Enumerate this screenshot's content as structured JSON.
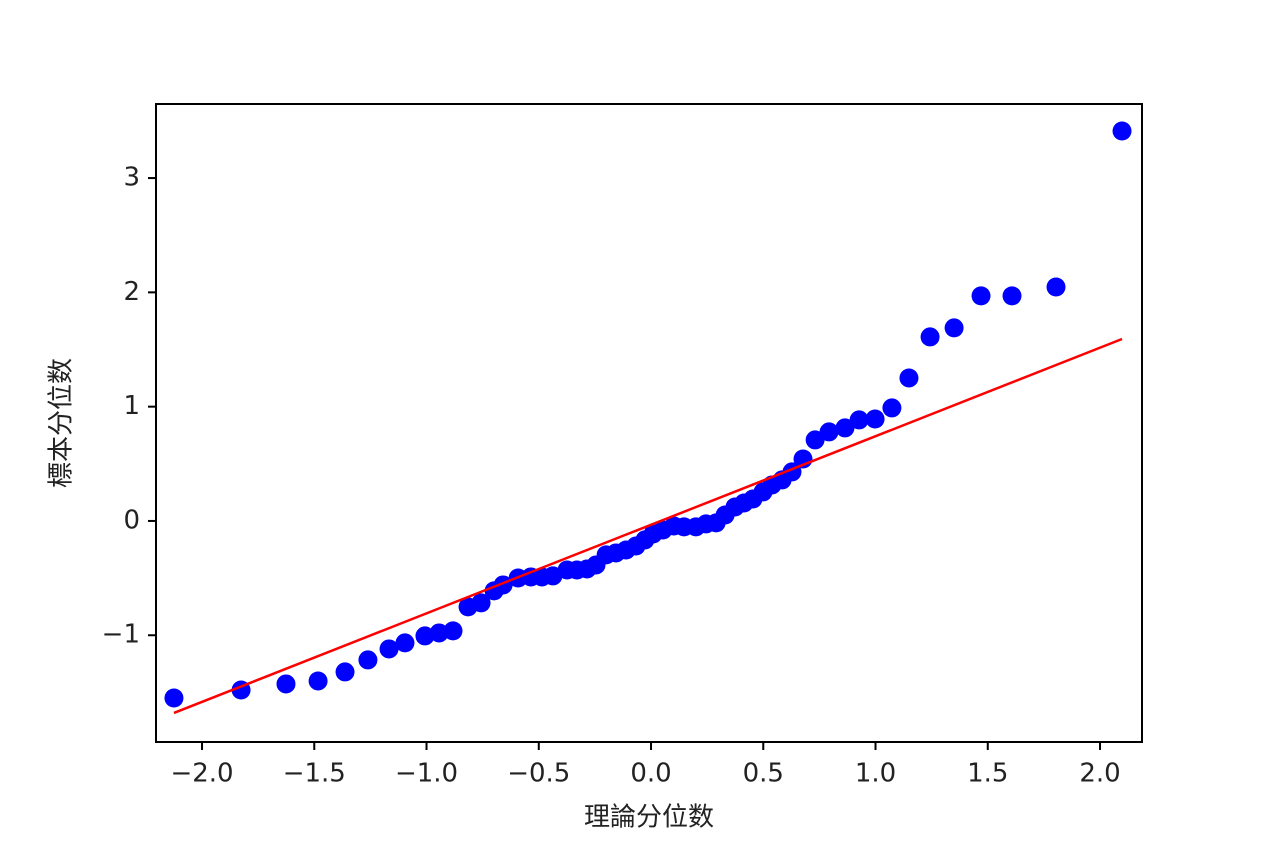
{
  "chart_data": {
    "type": "scatter",
    "xlabel": "理論分位数",
    "ylabel": "標本分位数",
    "xlim": [
      -2.205,
      2.187
    ],
    "ylim": [
      -1.934,
      3.648
    ],
    "xticks": [
      {
        "value": -2.0,
        "label": "−2.0"
      },
      {
        "value": -1.5,
        "label": "−1.5"
      },
      {
        "value": -1.0,
        "label": "−1.0"
      },
      {
        "value": -0.5,
        "label": "−0.5"
      },
      {
        "value": 0.0,
        "label": "0.0"
      },
      {
        "value": 0.5,
        "label": "0.5"
      },
      {
        "value": 1.0,
        "label": "1.0"
      },
      {
        "value": 1.5,
        "label": "1.5"
      },
      {
        "value": 2.0,
        "label": "2.0"
      }
    ],
    "yticks": [
      {
        "value": -1,
        "label": "−1"
      },
      0,
      1,
      2,
      3
    ],
    "grid": false,
    "series": [
      {
        "type": "scatter",
        "color": "#0000ff",
        "x": [
          -2.125,
          -1.826,
          -1.626,
          -1.483,
          -1.363,
          -1.261,
          -1.167,
          -1.096,
          -1.007,
          -0.944,
          -0.882,
          -0.815,
          -0.757,
          -0.699,
          -0.659,
          -0.592,
          -0.535,
          -0.486,
          -0.437,
          -0.374,
          -0.33,
          -0.285,
          -0.245,
          -0.2,
          -0.156,
          -0.111,
          -0.067,
          -0.027,
          0.009,
          0.053,
          0.102,
          0.147,
          0.2,
          0.245,
          0.29,
          0.33,
          0.374,
          0.414,
          0.454,
          0.499,
          0.539,
          0.584,
          0.628,
          0.677,
          0.731,
          0.793,
          0.864,
          0.927,
          0.998,
          1.073,
          1.149,
          1.243,
          1.35,
          1.47,
          1.608,
          1.804,
          2.098
        ],
        "values": [
          -1.549,
          -1.479,
          -1.426,
          -1.4,
          -1.321,
          -1.216,
          -1.12,
          -1.067,
          -1.006,
          -0.98,
          -0.962,
          -0.752,
          -0.717,
          -0.612,
          -0.56,
          -0.499,
          -0.49,
          -0.49,
          -0.481,
          -0.429,
          -0.429,
          -0.42,
          -0.385,
          -0.297,
          -0.28,
          -0.254,
          -0.219,
          -0.166,
          -0.114,
          -0.079,
          -0.044,
          -0.052,
          -0.052,
          -0.026,
          -0.017,
          0.052,
          0.122,
          0.157,
          0.192,
          0.254,
          0.315,
          0.359,
          0.429,
          0.542,
          0.709,
          0.779,
          0.814,
          0.884,
          0.892,
          0.989,
          1.251,
          1.61,
          1.689,
          1.969,
          1.969,
          2.047,
          3.412
        ]
      },
      {
        "type": "line",
        "color": "#ff0000",
        "x": [
          -2.125,
          2.098
        ],
        "values": [
          -1.68,
          1.592
        ]
      }
    ]
  }
}
